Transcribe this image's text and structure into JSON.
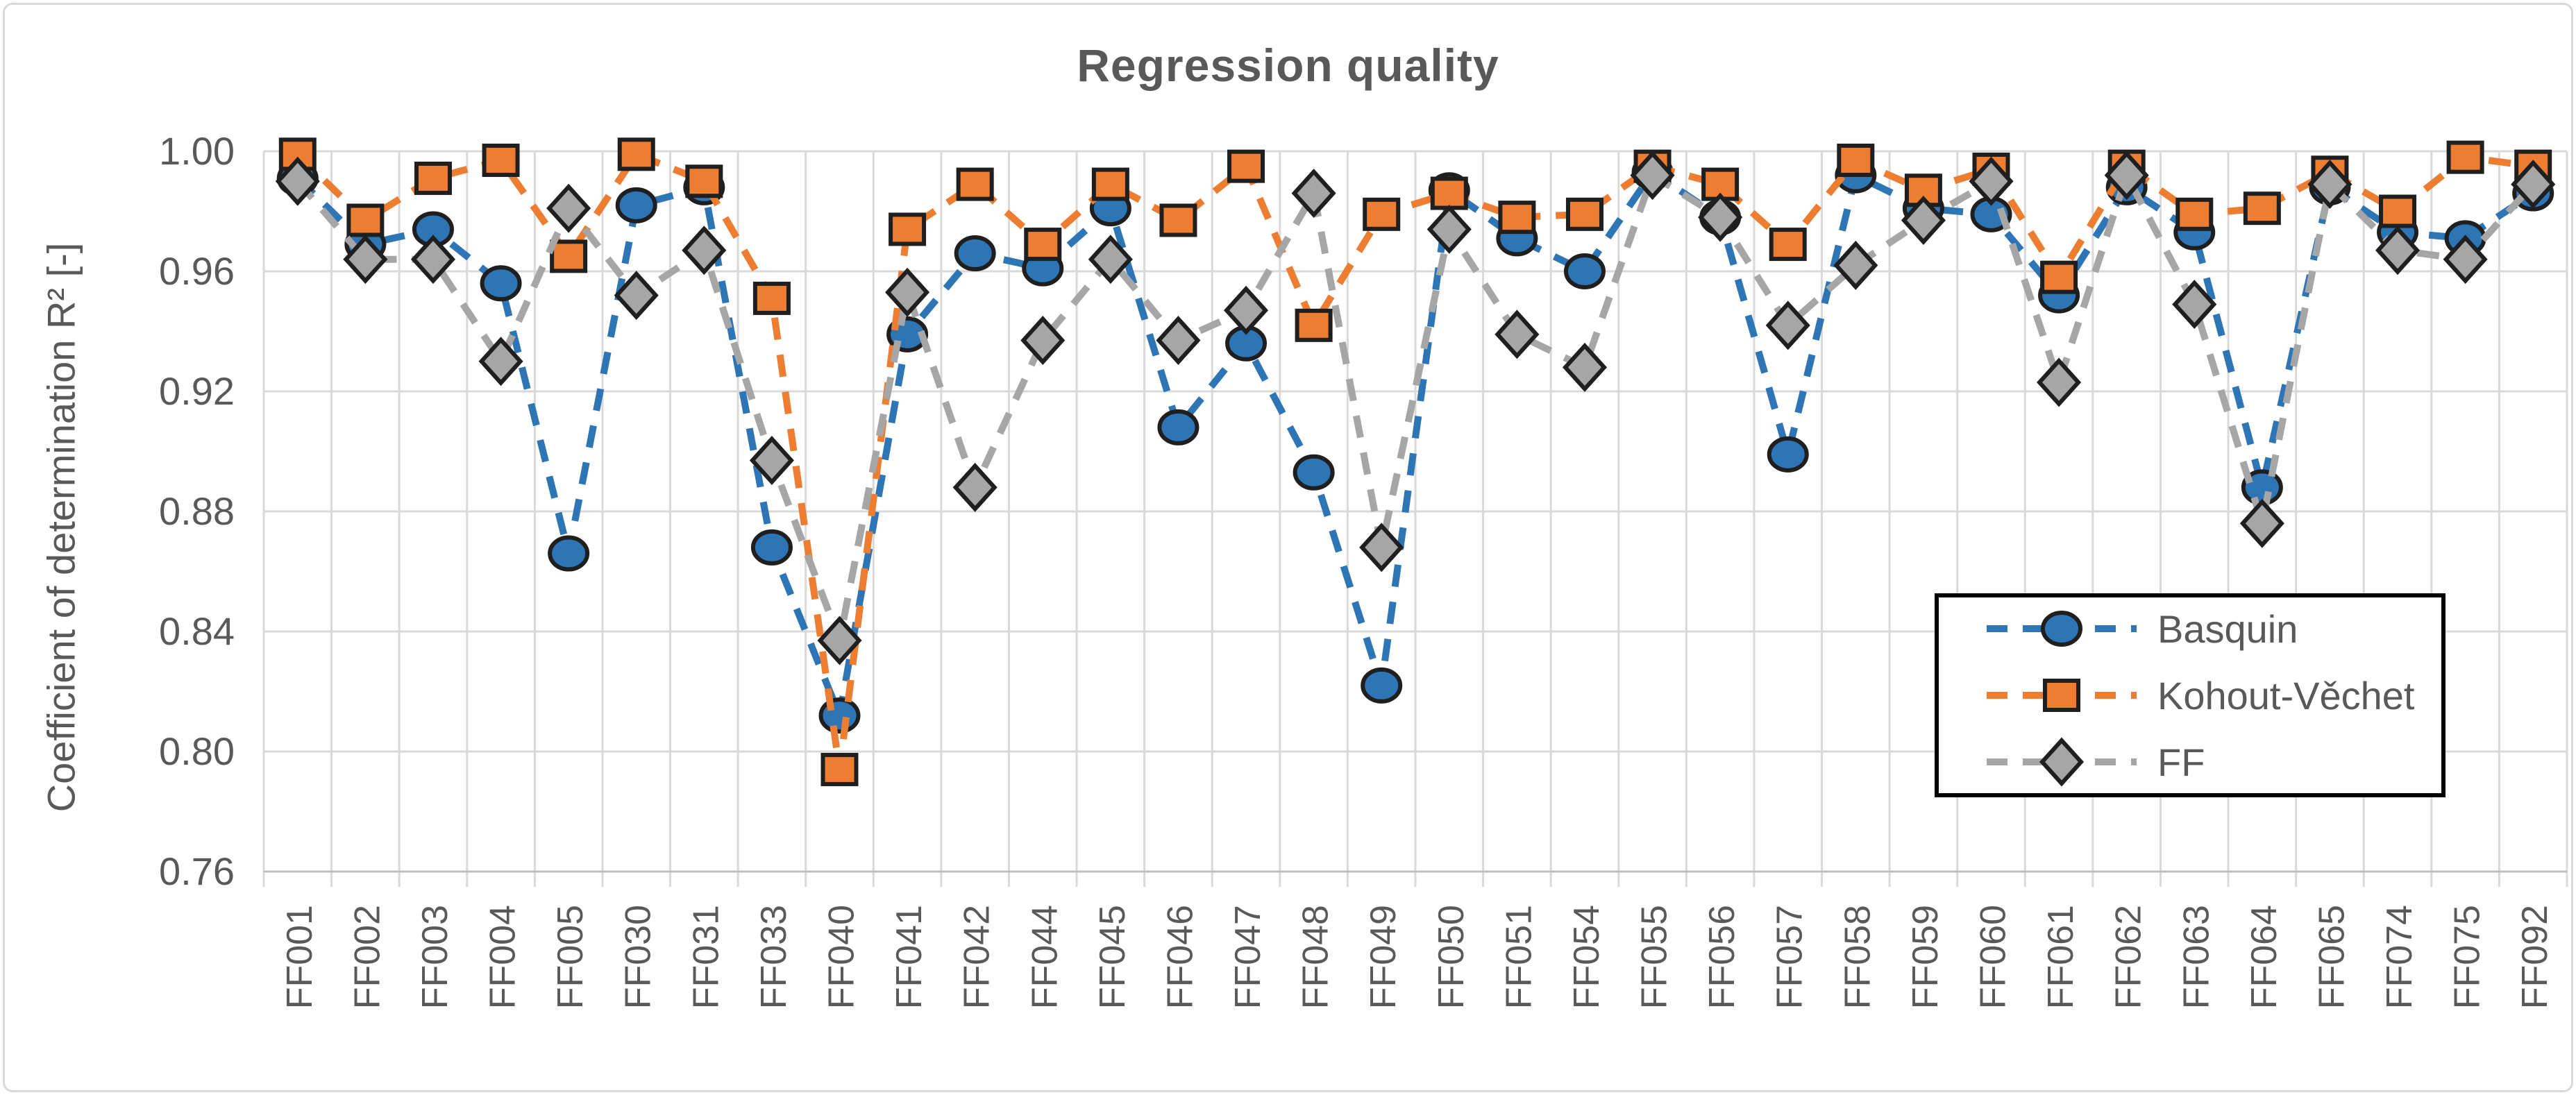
{
  "chart_data": {
    "type": "line",
    "title": "Regression quality",
    "ylabel": "Coefficient of determination R² [-]",
    "xlabel": "",
    "ylim": [
      0.76,
      1.0
    ],
    "ytick_step": 0.04,
    "ytick_labels": [
      "1.00",
      "0.96",
      "0.92",
      "0.88",
      "0.84",
      "0.80",
      "0.76"
    ],
    "grid": "on",
    "legend_position": "inside lower right",
    "categories": [
      "FF001",
      "FF002",
      "FF003",
      "FF004",
      "FF005",
      "FF030",
      "FF031",
      "FF033",
      "FF040",
      "FF041",
      "FF042",
      "FF044",
      "FF045",
      "FF046",
      "FF047",
      "FF048",
      "FF049",
      "FF050",
      "FF051",
      "FF054",
      "FF055",
      "FF056",
      "FF057",
      "FF058",
      "FF059",
      "FF060",
      "FF061",
      "FF062",
      "FF063",
      "FF064",
      "FF065",
      "FF074",
      "FF075",
      "FF092"
    ],
    "series": [
      {
        "name": "Basquin",
        "marker": "circle",
        "color": "#2e75b6",
        "values": [
          0.991,
          0.969,
          0.974,
          0.956,
          0.866,
          0.982,
          0.988,
          0.868,
          0.812,
          0.939,
          0.966,
          0.961,
          0.981,
          0.908,
          0.936,
          0.893,
          0.822,
          0.987,
          0.971,
          0.96,
          0.993,
          0.978,
          0.899,
          0.992,
          0.981,
          0.979,
          0.952,
          0.988,
          0.973,
          0.888,
          0.988,
          0.973,
          0.971,
          0.986
        ]
      },
      {
        "name": "Kohout-Věchet",
        "marker": "square",
        "color": "#ed7d31",
        "values": [
          0.999,
          0.977,
          0.991,
          0.997,
          0.965,
          0.999,
          0.99,
          0.951,
          0.794,
          0.974,
          0.989,
          0.969,
          0.989,
          0.977,
          0.995,
          0.942,
          0.979,
          0.986,
          0.978,
          0.979,
          0.995,
          0.989,
          0.969,
          0.997,
          0.987,
          0.994,
          0.958,
          0.995,
          0.979,
          0.981,
          0.993,
          0.98,
          0.998,
          0.995
        ]
      },
      {
        "name": "FF",
        "marker": "diamond",
        "color": "#a6a6a6",
        "values": [
          0.99,
          0.964,
          0.964,
          0.93,
          0.981,
          0.952,
          0.967,
          0.897,
          0.837,
          0.953,
          0.888,
          0.937,
          0.964,
          0.937,
          0.947,
          0.986,
          0.868,
          0.974,
          0.939,
          0.928,
          0.992,
          0.978,
          0.942,
          0.962,
          0.977,
          0.99,
          0.923,
          0.992,
          0.949,
          0.876,
          0.989,
          0.967,
          0.964,
          0.989
        ]
      }
    ],
    "style": {
      "grid_color": "#d9d9d9",
      "axis_color": "#bfbfbf",
      "text_color": "#595959",
      "marker_outline": "#1f1f1f",
      "legend_border": "#000000",
      "background": "#ffffff"
    }
  }
}
